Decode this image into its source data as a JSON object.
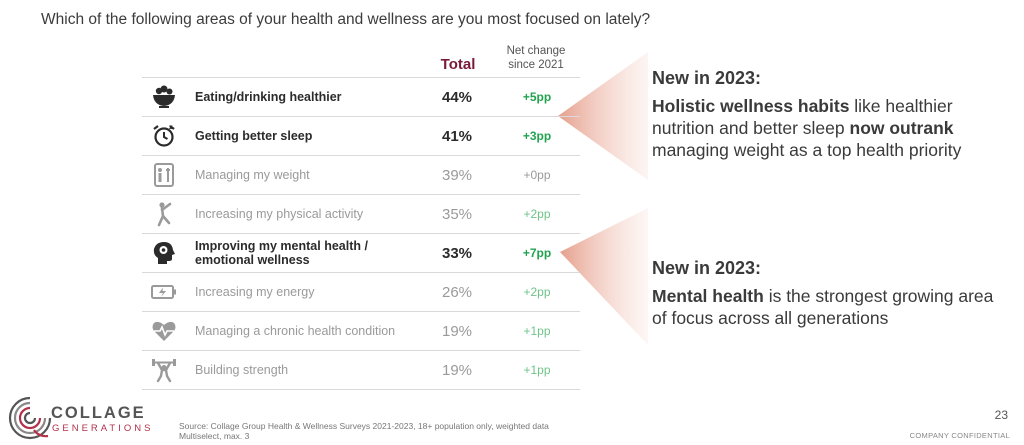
{
  "question": "Which of the following areas of your health and wellness are you most focused on lately?",
  "headers": {
    "total": "Total",
    "net_change_line1": "Net change",
    "net_change_line2": "since 2021"
  },
  "chart_data": {
    "type": "table",
    "columns": [
      "",
      "Total",
      "Net change since 2021"
    ],
    "rows": [
      {
        "label": "Eating/drinking healthier",
        "total": "44%",
        "net": "+5pp",
        "highlight": true,
        "icon": "salad-bowl-icon"
      },
      {
        "label": "Getting better sleep",
        "total": "41%",
        "net": "+3pp",
        "highlight": true,
        "icon": "alarm-clock-icon"
      },
      {
        "label": "Managing my weight",
        "total": "39%",
        "net": "+0pp",
        "highlight": false,
        "icon": "scale-icon"
      },
      {
        "label": "Increasing my physical activity",
        "total": "35%",
        "net": "+2pp",
        "highlight": false,
        "icon": "yoga-pose-icon"
      },
      {
        "label": "Improving my mental health / emotional wellness",
        "total": "33%",
        "net": "+7pp",
        "highlight": true,
        "icon": "head-brain-icon"
      },
      {
        "label": "Increasing my energy",
        "total": "26%",
        "net": "+2pp",
        "highlight": false,
        "icon": "battery-charging-icon"
      },
      {
        "label": "Managing a chronic health condition",
        "total": "19%",
        "net": "+1pp",
        "highlight": false,
        "icon": "heart-pulse-icon"
      },
      {
        "label": "Building strength",
        "total": "19%",
        "net": "+1pp",
        "highlight": false,
        "icon": "weightlifter-icon"
      }
    ]
  },
  "callouts": [
    {
      "heading": "New in 2023:",
      "bold1": "Holistic wellness habits",
      "text1": " like healthier nutrition and better sleep ",
      "bold2": "now outrank",
      "text2": " managing weight as a top health priority"
    },
    {
      "heading": "New in 2023:",
      "bold1": "Mental health",
      "text1": " is the strongest growing area of focus across all generations",
      "bold2": "",
      "text2": ""
    }
  ],
  "logo": {
    "word": "COLLAGE",
    "sub": "GENERATIONS"
  },
  "source_line1": "Source: Collage Group Health & Wellness Surveys 2021-2023, 18+ population only, weighted data",
  "source_line2": "Multiselect, max. 3",
  "page_number": "23",
  "confidential": "COMPANY CONFIDENTIAL",
  "colors": {
    "total_header": "#7a1a3a",
    "net_strong": "#22a34f",
    "net_light": "#6fc389",
    "callout_wedge": "#e8a796",
    "brand": "#b2314a"
  }
}
